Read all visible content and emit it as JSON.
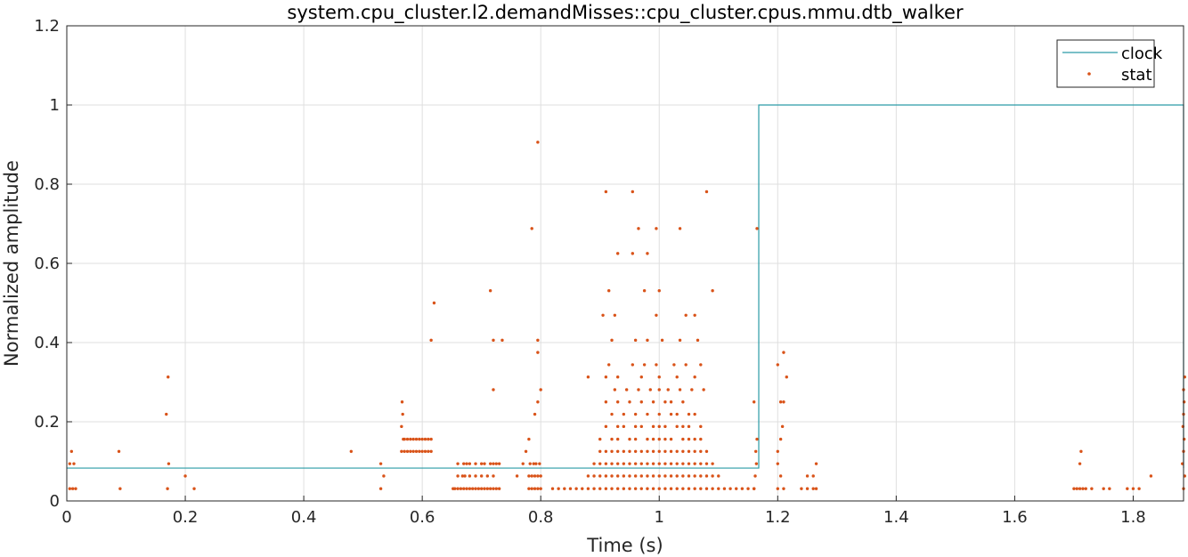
{
  "chart_data": {
    "type": "scatter",
    "title": "system.cpu_cluster.l2.demandMisses::cpu_cluster.cpus.mmu.dtb_walker",
    "xlabel": "Time (s)",
    "ylabel": "Normalized amplitude",
    "xlim": [
      0,
      1.885
    ],
    "ylim": [
      0,
      1.2
    ],
    "x_ticks": [
      "0",
      "0.2",
      "0.4",
      "0.6",
      "0.8",
      "1",
      "1.2",
      "1.4",
      "1.6",
      "1.8"
    ],
    "y_ticks": [
      "0",
      "0.2",
      "0.4",
      "0.6",
      "0.8",
      "1",
      "1.2"
    ],
    "grid": true,
    "legend_position": "top-right",
    "series": [
      {
        "name": "clock",
        "style": "line",
        "color": "#2a9ba6",
        "x": [
          0,
          1.168,
          1.168,
          1.885,
          1.885
        ],
        "y": [
          0.083,
          0.083,
          1.0,
          1.0,
          0.083
        ]
      },
      {
        "name": "stat",
        "style": "points",
        "color": "#d95319",
        "x": [
          0.005,
          0.01,
          0.015,
          0.005,
          0.008,
          0.012,
          0.09,
          0.088,
          0.17,
          0.172,
          0.168,
          0.171,
          0.2,
          0.215,
          0.48,
          0.53,
          0.535,
          0.53,
          0.565,
          0.568,
          0.565,
          0.567,
          0.566,
          0.57,
          0.575,
          0.58,
          0.585,
          0.59,
          0.595,
          0.6,
          0.605,
          0.61,
          0.615,
          0.57,
          0.575,
          0.58,
          0.585,
          0.59,
          0.595,
          0.6,
          0.605,
          0.61,
          0.615,
          0.615,
          0.62,
          0.652,
          0.655,
          0.66,
          0.665,
          0.67,
          0.675,
          0.68,
          0.685,
          0.69,
          0.695,
          0.7,
          0.705,
          0.71,
          0.715,
          0.72,
          0.725,
          0.73,
          0.66,
          0.668,
          0.672,
          0.68,
          0.69,
          0.7,
          0.71,
          0.72,
          0.66,
          0.67,
          0.675,
          0.68,
          0.69,
          0.7,
          0.705,
          0.715,
          0.72,
          0.725,
          0.73,
          0.715,
          0.72,
          0.735,
          0.76,
          0.77,
          0.775,
          0.78,
          0.785,
          0.79,
          0.795,
          0.8,
          0.78,
          0.785,
          0.79,
          0.795,
          0.8,
          0.782,
          0.788,
          0.792,
          0.798,
          0.78,
          0.79,
          0.795,
          0.8,
          0.795,
          0.795,
          0.82,
          0.83,
          0.84,
          0.85,
          0.86,
          0.87,
          0.88,
          0.89,
          0.9,
          0.91,
          0.92,
          0.93,
          0.94,
          0.95,
          0.96,
          0.97,
          0.98,
          0.99,
          1.0,
          1.01,
          1.02,
          1.03,
          1.04,
          1.05,
          1.06,
          1.07,
          1.08,
          1.09,
          1.1,
          1.11,
          1.12,
          1.13,
          1.14,
          1.15,
          1.16,
          0.88,
          0.89,
          0.9,
          0.91,
          0.92,
          0.93,
          0.94,
          0.95,
          0.96,
          0.97,
          0.98,
          0.99,
          1.0,
          1.01,
          1.02,
          1.03,
          1.04,
          1.05,
          1.06,
          1.07,
          1.08,
          1.09,
          1.1,
          0.89,
          0.9,
          0.91,
          0.92,
          0.93,
          0.94,
          0.95,
          0.96,
          0.97,
          0.98,
          0.99,
          1.0,
          1.01,
          1.02,
          1.03,
          1.04,
          1.05,
          1.06,
          1.07,
          1.08,
          1.09,
          0.9,
          0.91,
          0.92,
          0.93,
          0.94,
          0.95,
          0.96,
          0.97,
          0.98,
          0.99,
          1.0,
          1.01,
          1.02,
          1.03,
          1.04,
          1.05,
          1.06,
          1.07,
          1.08,
          0.9,
          0.92,
          0.93,
          0.95,
          0.96,
          0.98,
          0.99,
          1.0,
          1.01,
          1.02,
          1.04,
          1.05,
          1.06,
          1.07,
          0.91,
          0.93,
          0.94,
          0.96,
          0.97,
          0.99,
          1.0,
          1.01,
          1.03,
          1.04,
          1.05,
          1.07,
          0.92,
          0.94,
          0.96,
          0.98,
          1.0,
          1.02,
          1.03,
          1.05,
          1.06,
          0.91,
          0.93,
          0.95,
          0.97,
          0.99,
          1.01,
          1.02,
          1.04,
          0.925,
          0.945,
          0.965,
          0.985,
          1.0,
          1.015,
          1.035,
          1.055,
          1.075,
          0.88,
          0.91,
          0.93,
          0.97,
          1.0,
          1.03,
          1.06,
          0.915,
          0.955,
          0.975,
          0.995,
          1.025,
          1.045,
          1.07,
          0.92,
          0.96,
          0.98,
          1.005,
          1.035,
          1.065,
          0.905,
          0.925,
          0.995,
          1.045,
          1.06,
          0.915,
          0.975,
          1.0,
          1.09,
          0.93,
          0.955,
          0.98,
          0.965,
          0.995,
          1.035,
          0.91,
          0.955,
          1.08,
          0.795,
          0.72,
          0.785,
          1.16,
          1.162,
          1.164,
          1.163,
          1.165,
          1.16,
          1.165,
          1.2,
          1.21,
          1.205,
          1.2,
          1.2,
          1.205,
          1.208,
          1.21,
          1.215,
          1.2,
          1.21,
          1.205,
          1.24,
          1.25,
          1.26,
          1.265,
          1.25,
          1.26,
          1.265,
          1.7,
          1.705,
          1.71,
          1.715,
          1.72,
          1.73,
          1.71,
          1.712,
          1.75,
          1.76,
          1.79,
          1.8,
          1.81,
          1.83,
          1.885,
          1.887,
          1.883,
          1.885,
          1.886,
          1.884,
          1.885,
          1.886,
          1.885,
          1.887
        ],
        "y": [
          0.031,
          0.031,
          0.031,
          0.094,
          0.125,
          0.094,
          0.031,
          0.125,
          0.031,
          0.094,
          0.219,
          0.313,
          0.063,
          0.031,
          0.125,
          0.031,
          0.063,
          0.094,
          0.125,
          0.156,
          0.188,
          0.219,
          0.25,
          0.156,
          0.156,
          0.156,
          0.156,
          0.156,
          0.156,
          0.156,
          0.156,
          0.156,
          0.156,
          0.125,
          0.125,
          0.125,
          0.125,
          0.125,
          0.125,
          0.125,
          0.125,
          0.125,
          0.125,
          0.406,
          0.5,
          0.031,
          0.031,
          0.031,
          0.031,
          0.031,
          0.031,
          0.031,
          0.031,
          0.031,
          0.031,
          0.031,
          0.031,
          0.031,
          0.031,
          0.031,
          0.031,
          0.031,
          0.063,
          0.063,
          0.063,
          0.063,
          0.063,
          0.063,
          0.063,
          0.063,
          0.094,
          0.094,
          0.094,
          0.094,
          0.094,
          0.094,
          0.094,
          0.094,
          0.094,
          0.094,
          0.094,
          0.531,
          0.281,
          0.406,
          0.063,
          0.094,
          0.125,
          0.031,
          0.031,
          0.031,
          0.031,
          0.031,
          0.063,
          0.063,
          0.063,
          0.063,
          0.063,
          0.094,
          0.094,
          0.094,
          0.094,
          0.156,
          0.219,
          0.25,
          0.281,
          0.375,
          0.406,
          0.031,
          0.031,
          0.031,
          0.031,
          0.031,
          0.031,
          0.031,
          0.031,
          0.031,
          0.031,
          0.031,
          0.031,
          0.031,
          0.031,
          0.031,
          0.031,
          0.031,
          0.031,
          0.031,
          0.031,
          0.031,
          0.031,
          0.031,
          0.031,
          0.031,
          0.031,
          0.031,
          0.031,
          0.031,
          0.031,
          0.031,
          0.031,
          0.031,
          0.031,
          0.031,
          0.063,
          0.063,
          0.063,
          0.063,
          0.063,
          0.063,
          0.063,
          0.063,
          0.063,
          0.063,
          0.063,
          0.063,
          0.063,
          0.063,
          0.063,
          0.063,
          0.063,
          0.063,
          0.063,
          0.063,
          0.063,
          0.063,
          0.063,
          0.094,
          0.094,
          0.094,
          0.094,
          0.094,
          0.094,
          0.094,
          0.094,
          0.094,
          0.094,
          0.094,
          0.094,
          0.094,
          0.094,
          0.094,
          0.094,
          0.094,
          0.094,
          0.094,
          0.094,
          0.094,
          0.125,
          0.125,
          0.125,
          0.125,
          0.125,
          0.125,
          0.125,
          0.125,
          0.125,
          0.125,
          0.125,
          0.125,
          0.125,
          0.125,
          0.125,
          0.125,
          0.125,
          0.125,
          0.125,
          0.156,
          0.156,
          0.156,
          0.156,
          0.156,
          0.156,
          0.156,
          0.156,
          0.156,
          0.156,
          0.156,
          0.156,
          0.156,
          0.156,
          0.188,
          0.188,
          0.188,
          0.188,
          0.188,
          0.188,
          0.188,
          0.188,
          0.188,
          0.188,
          0.188,
          0.188,
          0.219,
          0.219,
          0.219,
          0.219,
          0.219,
          0.219,
          0.219,
          0.219,
          0.219,
          0.25,
          0.25,
          0.25,
          0.25,
          0.25,
          0.25,
          0.25,
          0.25,
          0.281,
          0.281,
          0.281,
          0.281,
          0.281,
          0.281,
          0.281,
          0.281,
          0.281,
          0.313,
          0.313,
          0.313,
          0.313,
          0.313,
          0.313,
          0.313,
          0.344,
          0.344,
          0.344,
          0.344,
          0.344,
          0.344,
          0.344,
          0.406,
          0.406,
          0.406,
          0.406,
          0.406,
          0.406,
          0.469,
          0.469,
          0.469,
          0.469,
          0.469,
          0.531,
          0.531,
          0.531,
          0.531,
          0.625,
          0.625,
          0.625,
          0.688,
          0.688,
          0.688,
          0.781,
          0.781,
          0.781,
          0.906,
          0.406,
          0.688,
          0.031,
          0.063,
          0.094,
          0.125,
          0.156,
          0.25,
          0.688,
          0.031,
          0.031,
          0.063,
          0.094,
          0.125,
          0.156,
          0.188,
          0.25,
          0.313,
          0.344,
          0.375,
          0.25,
          0.031,
          0.031,
          0.031,
          0.031,
          0.063,
          0.063,
          0.094,
          0.031,
          0.031,
          0.031,
          0.031,
          0.031,
          0.031,
          0.094,
          0.125,
          0.031,
          0.031,
          0.031,
          0.031,
          0.031,
          0.063,
          0.031,
          0.063,
          0.094,
          0.125,
          0.156,
          0.188,
          0.219,
          0.25,
          0.281,
          0.313
        ]
      }
    ]
  }
}
